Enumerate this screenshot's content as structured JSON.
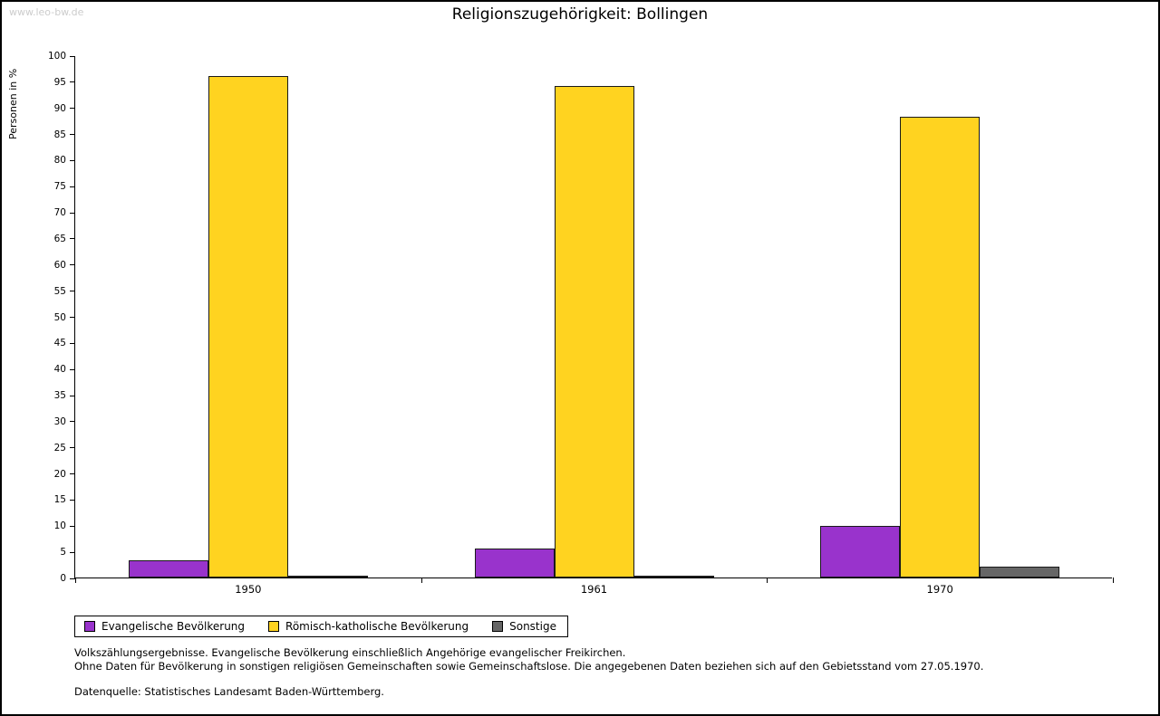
{
  "watermark": "www.leo-bw.de",
  "title": "Religionszugehörigkeit: Bollingen",
  "chart_data": {
    "type": "bar",
    "categories": [
      "1950",
      "1961",
      "1970"
    ],
    "series": [
      {
        "name": "Evangelische Bevölkerung",
        "color": "#9933CC",
        "values": [
          3.3,
          5.5,
          9.8
        ]
      },
      {
        "name": "Römisch-katholische Bevölkerung",
        "color": "#FFD320",
        "values": [
          96.0,
          94.1,
          88.3
        ]
      },
      {
        "name": "Sonstige",
        "color": "#666666",
        "values": [
          0.4,
          0.2,
          2.0
        ]
      }
    ],
    "ylabel": "Personen in %",
    "ylim": [
      0,
      100
    ],
    "ytick_step": 5,
    "grid": false,
    "legend_position": "bottom-left"
  },
  "footnotes": [
    "Volkszählungsergebnisse. Evangelische Bevölkerung einschließlich Angehörige evangelischer Freikirchen.",
    "Ohne Daten für Bevölkerung in sonstigen religiösen Gemeinschaften sowie Gemeinschaftslose. Die angegebenen Daten beziehen sich auf den Gebietsstand vom 27.05.1970.",
    "Datenquelle: Statistisches Landesamt Baden-Württemberg."
  ]
}
